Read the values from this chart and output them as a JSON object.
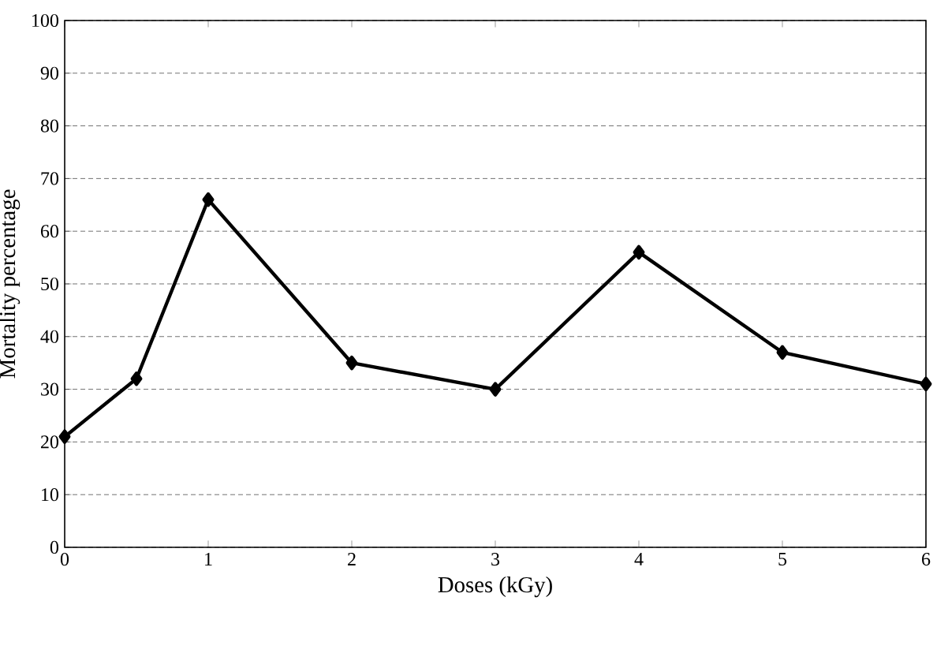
{
  "chart_data": {
    "type": "line",
    "xlabel": "Doses (kGy)",
    "ylabel": "Mortality percentage",
    "x": [
      0,
      0.5,
      1,
      2,
      3,
      4,
      5,
      6
    ],
    "series": [
      {
        "color": "#000000",
        "values": [
          21,
          32,
          66,
          35,
          30,
          56,
          37,
          31
        ]
      }
    ],
    "xlim": [
      0,
      6
    ],
    "xticks": [
      0,
      1,
      2,
      3,
      4,
      5,
      6
    ],
    "ylim": [
      0,
      100
    ],
    "yticks": [
      0,
      10,
      20,
      30,
      40,
      50,
      60,
      70,
      80,
      90,
      100
    ],
    "grid": "y",
    "marker": "diamond",
    "line_style": "solid"
  }
}
